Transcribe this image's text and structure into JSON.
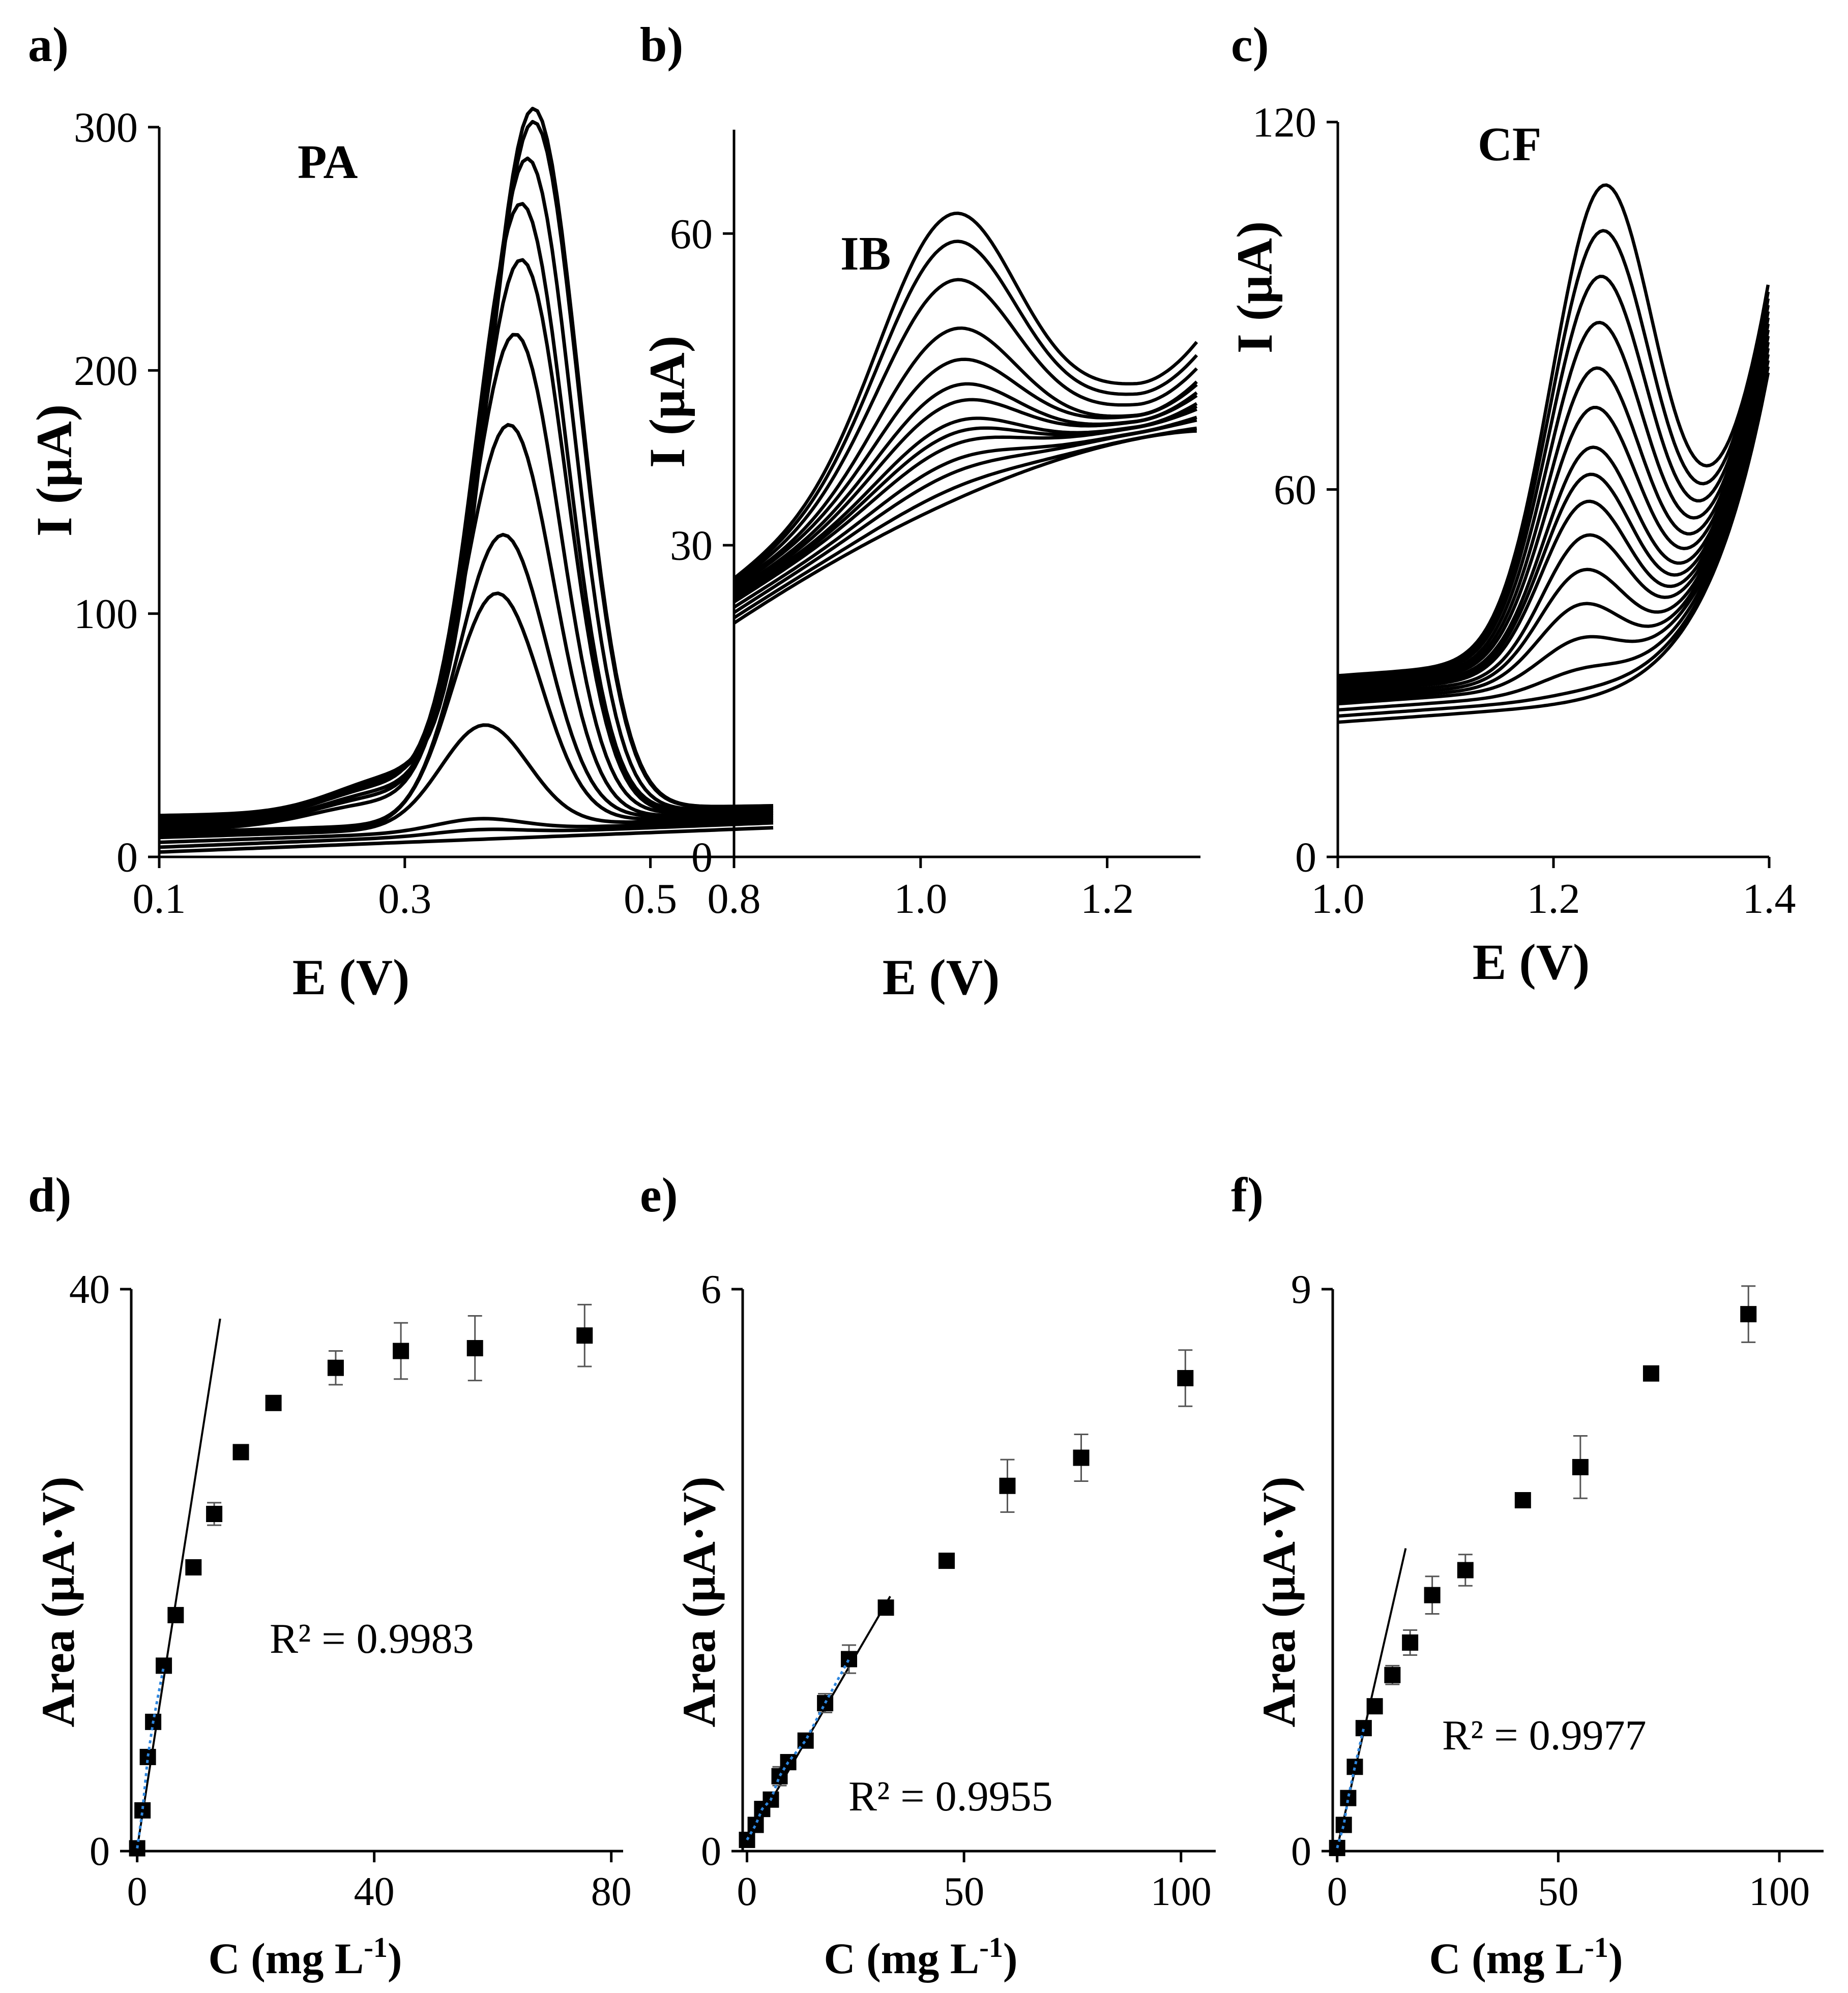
{
  "figure": {
    "panels": [
      {
        "letter": "a)",
        "annotation": "PA",
        "xlabel": "E (V)",
        "ylabel": "I (µA)"
      },
      {
        "letter": "b)",
        "annotation": "IB",
        "xlabel": "E (V)",
        "ylabel": "I (µA)"
      },
      {
        "letter": "c)",
        "annotation": "CF",
        "xlabel": "E (V)",
        "ylabel": "I (µA)"
      },
      {
        "letter": "d)",
        "r2": "R² = 0.9983",
        "xlabel": "C (mg L-1)",
        "ylabel": "Area (µA·V)"
      },
      {
        "letter": "e)",
        "r2": "R² = 0.9955",
        "xlabel": "C (mg L-1)",
        "ylabel": "Area (µA·V)"
      },
      {
        "letter": "f)",
        "r2": "R² = 0.9977",
        "xlabel": "C (mg L-1)",
        "ylabel": "Area (µA·V)"
      }
    ],
    "line_color": "#000000",
    "fit_color": "#2e86de"
  },
  "chart_data": [
    {
      "id": "a",
      "type": "line",
      "title": "PA",
      "xlabel": "E (V)",
      "ylabel": "I (µA)",
      "xlim": [
        0.1,
        0.6
      ],
      "ylim": [
        0,
        300
      ],
      "xticks": [
        0.1,
        0.3,
        0.5
      ],
      "xtick_labels": [
        "0.1",
        "0.3",
        "0.5"
      ],
      "yticks": [
        0,
        100,
        200,
        300
      ],
      "ytick_labels": [
        "0",
        "100",
        "200",
        "300"
      ],
      "curves": {
        "model": "gaussian_peak_on_baseline",
        "peak_heights": [
          0,
          2,
          5,
          42,
          95,
          118,
          162,
          198,
          228,
          250,
          268,
          282,
          287
        ],
        "peak_potentials": [
          0.36,
          0.36,
          0.36,
          0.365,
          0.375,
          0.38,
          0.385,
          0.39,
          0.395,
          0.395,
          0.4,
          0.405,
          0.405
        ],
        "baseline_start": [
          2,
          4,
          6,
          8,
          9,
          10,
          11,
          12,
          13,
          14,
          15,
          16,
          17
        ],
        "baseline_end": [
          12,
          14,
          15,
          16,
          17,
          18,
          18,
          19,
          19,
          20,
          20,
          21,
          21
        ]
      }
    },
    {
      "id": "b",
      "type": "line",
      "title": "IB",
      "xlabel": "E (V)",
      "ylabel": "I (µA)",
      "xlim": [
        0.8,
        1.3
      ],
      "ylim": [
        0,
        70
      ],
      "xticks": [
        0.8,
        1.0,
        1.2
      ],
      "xtick_labels": [
        "0.8",
        "1.0",
        "1.2"
      ],
      "yticks": [
        0,
        30,
        60
      ],
      "ytick_labels": [
        "0",
        "30",
        "60"
      ],
      "curves": {
        "model": "broad_peak_on_sloped_baseline",
        "peak_heights": [
          0,
          1,
          2,
          3,
          4,
          5,
          6,
          7.5,
          9,
          11,
          14,
          18,
          21,
          23
        ],
        "peak_potential": 1.03,
        "baseline_start": [
          22.5,
          23,
          23.5,
          24,
          24.5,
          24.8,
          25,
          25.2,
          25.5,
          25.8,
          26,
          26.2,
          26.4,
          26.6
        ],
        "baseline_end": [
          41,
          41,
          41.5,
          41.5,
          42,
          42,
          42,
          42.5,
          42.5,
          43,
          43,
          44,
          45,
          46
        ]
      }
    },
    {
      "id": "c",
      "type": "line",
      "title": "CF",
      "xlabel": "E (V)",
      "ylabel": "I (µA)",
      "xlim": [
        1.0,
        1.4
      ],
      "ylim": [
        0,
        120
      ],
      "xticks": [
        1.0,
        1.2,
        1.4
      ],
      "xtick_labels": [
        "1.0",
        "1.2",
        "1.4"
      ],
      "yticks": [
        0,
        60,
        120
      ],
      "ytick_labels": [
        "0",
        "60",
        "120"
      ],
      "curves": {
        "model": "peak_with_rising_tail",
        "peak_heights": [
          0,
          0.5,
          3,
          7,
          12,
          17,
          22,
          27,
          31,
          35,
          41,
          47,
          54,
          61,
          68,
          75
        ],
        "peak_potentials": [
          1.225,
          1.225,
          1.225,
          1.225,
          1.225,
          1.227,
          1.23,
          1.23,
          1.232,
          1.234,
          1.236,
          1.238,
          1.24,
          1.242,
          1.244,
          1.246
        ],
        "baseline_start": [
          22,
          23,
          24,
          25,
          25.5,
          26,
          26.5,
          27,
          27.3,
          27.6,
          28,
          28.3,
          28.6,
          29,
          29.3,
          29.6
        ],
        "tail_end": [
          80,
          80,
          81,
          82,
          83,
          84,
          85,
          86,
          87,
          88,
          89,
          90,
          91,
          92,
          93,
          94
        ]
      }
    },
    {
      "id": "d",
      "type": "scatter",
      "xlabel": "C (mg L-1)",
      "ylabel": "Area (µA·V)",
      "xlim": [
        -1,
        82
      ],
      "ylim": [
        0,
        40
      ],
      "xticks": [
        0,
        40,
        80
      ],
      "xtick_labels": [
        "0",
        "40",
        "80"
      ],
      "yticks": [
        0,
        40
      ],
      "ytick_labels": [
        "0",
        "40"
      ],
      "x": [
        0,
        0.9,
        1.8,
        2.7,
        4.5,
        6.5,
        9.5,
        13,
        17.5,
        23,
        33.5,
        44.5,
        57,
        75.5
      ],
      "y": [
        0.2,
        2.9,
        6.7,
        9.2,
        13.2,
        16.8,
        20.2,
        24.0,
        28.4,
        31.9,
        34.4,
        35.6,
        35.8,
        36.7
      ],
      "yerr": [
        0,
        0,
        0,
        0,
        0,
        0,
        0,
        0.8,
        0,
        0.5,
        1.2,
        2.0,
        2.3,
        2.2
      ],
      "fit": {
        "x": [
          0,
          14
        ],
        "y": [
          0.2,
          37.9
        ]
      },
      "fit_points": {
        "x": [
          0,
          0.9,
          1.8,
          2.7,
          4.5
        ],
        "y": [
          0.2,
          2.9,
          6.7,
          9.2,
          13.2
        ]
      },
      "annotation": "R² = 0.9983"
    },
    {
      "id": "e",
      "type": "scatter",
      "xlabel": "C (mg L-1)",
      "ylabel": "Area (µA·V)",
      "xlim": [
        -1,
        108
      ],
      "ylim": [
        0,
        6
      ],
      "xticks": [
        0,
        50,
        100
      ],
      "xtick_labels": [
        "0",
        "50",
        "100"
      ],
      "yticks": [
        0,
        6
      ],
      "ytick_labels": [
        "0",
        "6"
      ],
      "x": [
        0,
        2,
        3.5,
        5.5,
        7.5,
        9.5,
        13.5,
        18,
        23.5,
        32,
        46,
        60,
        77,
        101
      ],
      "y": [
        0.12,
        0.28,
        0.45,
        0.55,
        0.8,
        0.95,
        1.18,
        1.58,
        2.05,
        2.6,
        3.1,
        3.9,
        4.2,
        5.05
      ],
      "yerr": [
        0,
        0,
        0,
        0,
        0.1,
        0,
        0,
        0.1,
        0.15,
        0,
        0,
        0.28,
        0.25,
        0.3
      ],
      "fit": {
        "x": [
          0,
          33
        ],
        "y": [
          0.1,
          2.72
        ]
      },
      "fit_points": {
        "x": [
          0,
          2,
          3.5,
          5.5,
          7.5,
          9.5,
          13.5,
          18,
          23.5
        ],
        "y": [
          0.12,
          0.28,
          0.45,
          0.55,
          0.8,
          0.95,
          1.18,
          1.58,
          2.05
        ]
      },
      "annotation": "R² = 0.9955"
    },
    {
      "id": "f",
      "type": "scatter",
      "xlabel": "C (mg L-1)",
      "ylabel": "Area (µA·V)",
      "xlim": [
        -1,
        110
      ],
      "ylim": [
        0,
        9
      ],
      "xticks": [
        0,
        50,
        100
      ],
      "xtick_labels": [
        "0",
        "50",
        "100"
      ],
      "yticks": [
        0,
        9
      ],
      "ytick_labels": [
        "0",
        "9"
      ],
      "x": [
        0,
        1.5,
        2.5,
        4,
        6,
        8.5,
        12.5,
        16.5,
        21.5,
        29,
        42,
        55,
        71,
        93
      ],
      "y": [
        0.05,
        0.42,
        0.85,
        1.35,
        1.97,
        2.32,
        2.82,
        3.34,
        4.1,
        4.5,
        5.62,
        6.15,
        7.65,
        8.6
      ],
      "yerr": [
        0,
        0,
        0,
        0,
        0,
        0,
        0.15,
        0.2,
        0.3,
        0.25,
        0,
        0.5,
        0,
        0.45
      ],
      "fit": {
        "x": [
          0,
          15.5
        ],
        "y": [
          0.05,
          4.85
        ]
      },
      "fit_points": {
        "x": [
          0,
          1.5,
          2.5,
          4,
          6
        ],
        "y": [
          0.05,
          0.42,
          0.85,
          1.35,
          1.97
        ]
      },
      "annotation": "R² = 0.9977"
    }
  ]
}
